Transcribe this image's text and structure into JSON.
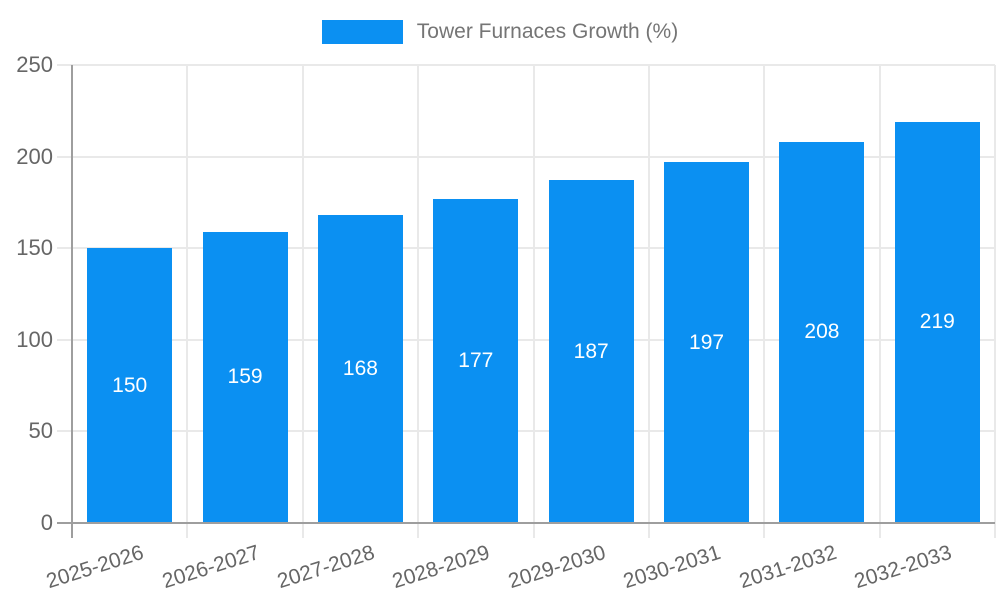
{
  "legend": {
    "label": "Tower Furnaces Growth (%)",
    "position": "top"
  },
  "chart_data": {
    "type": "bar",
    "title": "Tower Furnaces Growth (%)",
    "categories": [
      "2025-2026",
      "2026-2027",
      "2027-2028",
      "2028-2029",
      "2029-2030",
      "2030-2031",
      "2031-2032",
      "2032-2033"
    ],
    "series": [
      {
        "name": "Tower Furnaces Growth (%)",
        "values": [
          150,
          159,
          168,
          177,
          187,
          197,
          208,
          219
        ],
        "color": "#0B90F2"
      }
    ],
    "value_labels": "inside-center",
    "xlabel": "",
    "ylabel": "",
    "ylim": [
      0,
      250
    ],
    "yticks": [
      0,
      50,
      100,
      150,
      200,
      250
    ],
    "grid": true,
    "legend_position": "top-center",
    "x_tick_rotation_deg": -17.5
  },
  "colors": {
    "bar": "#0B90F2",
    "grid_line": "#e9e9e9",
    "axis_line": "#9e9e9e",
    "tick_text": "#666666",
    "legend_text": "#757575",
    "value_label_text": "#ffffff",
    "background": "#ffffff"
  }
}
